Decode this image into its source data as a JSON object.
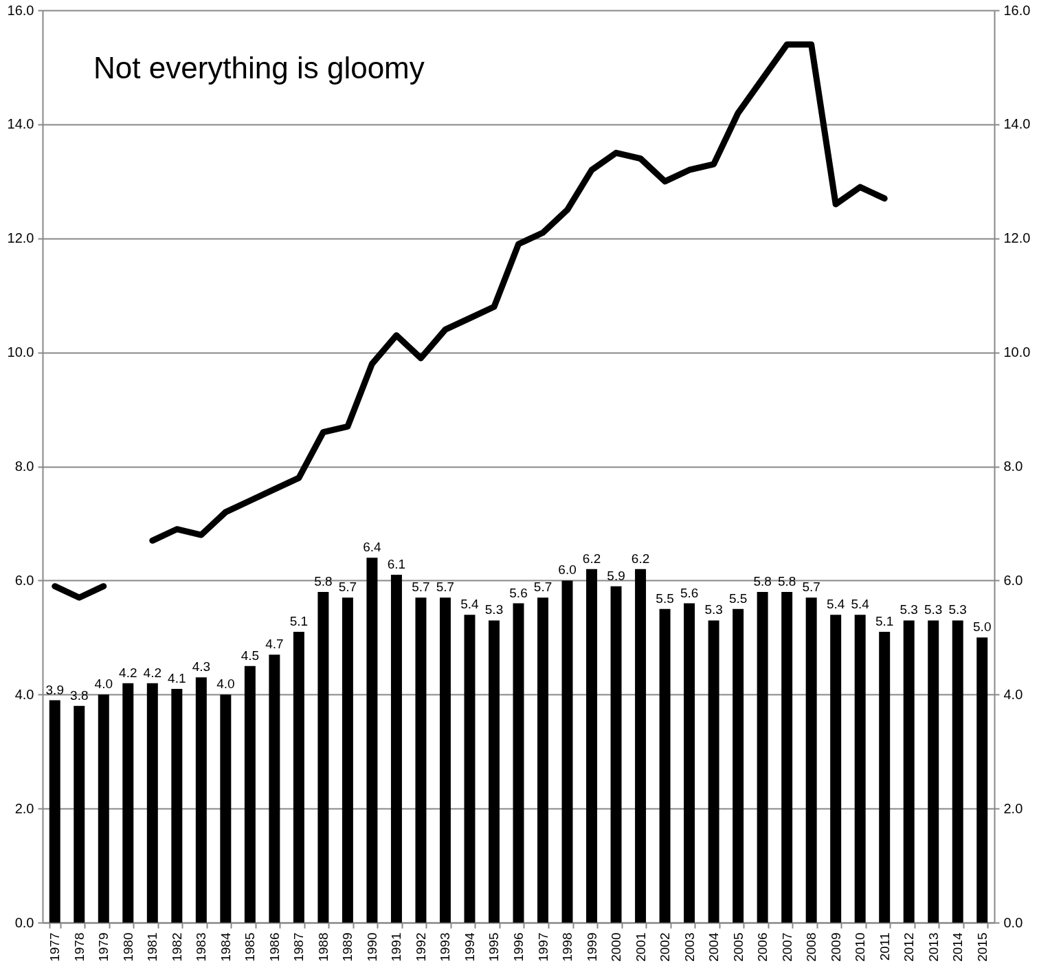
{
  "chart_data": {
    "type": "bar",
    "title": "Not everything is gloomy",
    "categories": [
      "1977",
      "1978",
      "1979",
      "1980",
      "1981",
      "1982",
      "1983",
      "1984",
      "1985",
      "1986",
      "1987",
      "1988",
      "1989",
      "1990",
      "1991",
      "1992",
      "1993",
      "1994",
      "1995",
      "1996",
      "1997",
      "1998",
      "1999",
      "2000",
      "2001",
      "2002",
      "2003",
      "2004",
      "2005",
      "2006",
      "2007",
      "2008",
      "2009",
      "2010",
      "2011",
      "2012",
      "2013",
      "2014",
      "2015"
    ],
    "series": [
      {
        "color": "#000000",
        "values": [
          3.9,
          3.8,
          4.0,
          4.2,
          4.2,
          4.1,
          4.3,
          4.0,
          4.5,
          4.7,
          5.1,
          5.8,
          5.7,
          6.4,
          6.1,
          5.7,
          5.7,
          5.4,
          5.3,
          5.6,
          5.7,
          6.0,
          6.2,
          5.9,
          6.2,
          5.5,
          5.6,
          5.3,
          5.5,
          5.8,
          5.8,
          5.7,
          5.4,
          5.4,
          5.1,
          5.3,
          5.3,
          5.3,
          5.0
        ],
        "value_labels": [
          "3.9",
          "3.8",
          "4.0",
          "4.2",
          "4.2",
          "4.1",
          "4.3",
          "4.0",
          "4.5",
          "4.7",
          "5.1",
          "5.8",
          "5.7",
          "6.4",
          "6.1",
          "5.7",
          "5.7",
          "5.4",
          "5.3",
          "5.6",
          "5.7",
          "6.0",
          "6.2",
          "5.9",
          "6.2",
          "5.5",
          "5.6",
          "5.3",
          "5.5",
          "5.8",
          "5.8",
          "5.7",
          "5.4",
          "5.4",
          "5.1",
          "5.3",
          "5.3",
          "5.3",
          "5.0"
        ]
      },
      {
        "type": "line",
        "axis": "y2",
        "color": "#000000",
        "values": [
          5.9,
          5.7,
          5.9,
          null,
          6.7,
          6.9,
          6.8,
          7.2,
          7.4,
          7.6,
          7.8,
          8.6,
          8.7,
          9.8,
          10.3,
          9.9,
          10.4,
          10.6,
          10.8,
          11.9,
          12.1,
          12.5,
          13.2,
          13.5,
          13.4,
          13.0,
          13.2,
          13.3,
          14.2,
          14.8,
          15.4,
          15.4,
          12.6,
          12.9,
          12.7,
          null,
          null,
          null,
          null
        ]
      }
    ],
    "ylim": [
      0,
      16
    ],
    "yticks": [
      {
        "value": 0,
        "label": "0.0"
      },
      {
        "value": 2,
        "label": "2.0"
      },
      {
        "value": 4,
        "label": "4.0"
      },
      {
        "value": 6,
        "label": "6.0"
      },
      {
        "value": 8,
        "label": "8.0"
      },
      {
        "value": 10,
        "label": "10.0"
      },
      {
        "value": 12,
        "label": "12.0"
      },
      {
        "value": 14,
        "label": "14.0"
      },
      {
        "value": 16,
        "label": "16.0"
      }
    ],
    "y2lim": [
      0,
      16
    ],
    "y2ticks": [
      {
        "value": 0,
        "label": "0.0"
      },
      {
        "value": 2,
        "label": "2.0"
      },
      {
        "value": 4,
        "label": "4.0"
      },
      {
        "value": 6,
        "label": "6.0"
      },
      {
        "value": 8,
        "label": "8.0"
      },
      {
        "value": 10,
        "label": "10.0"
      },
      {
        "value": 12,
        "label": "12.0"
      },
      {
        "value": 14,
        "label": "14.0"
      },
      {
        "value": 16,
        "label": "16.0"
      }
    ],
    "grid": "y"
  }
}
